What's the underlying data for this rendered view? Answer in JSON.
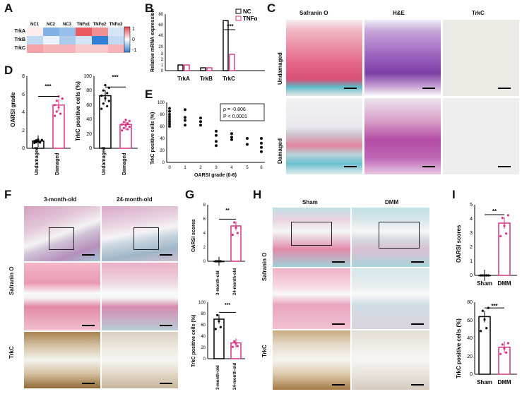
{
  "panels": {
    "A": "A",
    "B": "B",
    "C": "C",
    "D": "D",
    "E": "E",
    "F": "F",
    "G": "G",
    "H": "H",
    "I": "I"
  },
  "heatmap": {
    "cols": [
      "NC1",
      "NC2",
      "NC3",
      "TNFα1",
      "TNFα2",
      "TNFα3"
    ],
    "rows": [
      "TrkA",
      "TrkB",
      "TrkC"
    ],
    "values": [
      [
        0.1,
        -0.6,
        -0.5,
        0.9,
        0.6,
        -0.2
      ],
      [
        -0.3,
        -0.1,
        -0.4,
        -0.2,
        -1.0,
        -0.3
      ],
      [
        0.5,
        0.4,
        0.4,
        0.3,
        0.3,
        0.4
      ]
    ],
    "scale_ticks": [
      "1",
      "0",
      "-1"
    ],
    "colors": {
      "high": "#e7464e",
      "mid": "#ffffff",
      "low": "#2f7fd4"
    }
  },
  "chart_data": [
    {
      "id": "B",
      "type": "bar",
      "ylabel": "Relative mRNA expression",
      "categories": [
        "TrkA",
        "TrkB",
        "TrkC"
      ],
      "series": [
        {
          "name": "NC",
          "values": [
            1,
            0.5,
            72
          ]
        },
        {
          "name": "TNFα",
          "values": [
            1,
            0.5,
            19
          ]
        }
      ],
      "yticks": [
        "0",
        "1",
        "2",
        "3",
        "20",
        "40",
        "60",
        "80"
      ],
      "sig": "***"
    },
    {
      "id": "D1",
      "type": "bar",
      "ylabel": "OARSI grade",
      "categories": [
        "Undamaged",
        "Damaged"
      ],
      "values": [
        0.8,
        4.8
      ],
      "ylim": [
        0,
        8
      ],
      "yticks": [
        "0",
        "2",
        "4",
        "6",
        "8"
      ],
      "sig": "***"
    },
    {
      "id": "D2",
      "type": "bar",
      "ylabel": "TrkC positive cells (%)",
      "categories": [
        "Undamaged",
        "Damaged"
      ],
      "values": [
        73,
        33
      ],
      "ylim": [
        0,
        100
      ],
      "yticks": [
        "0",
        "20",
        "40",
        "60",
        "80",
        "100"
      ],
      "sig": "***"
    },
    {
      "id": "E",
      "type": "scatter",
      "xlabel": "OARSI grade (0-6)",
      "ylabel": "TrkC positive cells (%)",
      "xticks": [
        "0",
        "1",
        "2",
        "3",
        "4",
        "5",
        "6"
      ],
      "yticks": [
        "0",
        "20",
        "40",
        "60",
        "80",
        "100"
      ],
      "points": [
        [
          0,
          90
        ],
        [
          0,
          85
        ],
        [
          0,
          80
        ],
        [
          0,
          76
        ],
        [
          0,
          72
        ],
        [
          0,
          68
        ],
        [
          0,
          64
        ],
        [
          0,
          60
        ],
        [
          1,
          88
        ],
        [
          1,
          75
        ],
        [
          1,
          70
        ],
        [
          1,
          62
        ],
        [
          2,
          74
        ],
        [
          2,
          68
        ],
        [
          2,
          62
        ],
        [
          3,
          52
        ],
        [
          3,
          45
        ],
        [
          3,
          35
        ],
        [
          3,
          28
        ],
        [
          4,
          48
        ],
        [
          4,
          42
        ],
        [
          4,
          38
        ],
        [
          5,
          40
        ],
        [
          5,
          30
        ],
        [
          6,
          40
        ],
        [
          6,
          32
        ],
        [
          6,
          25
        ],
        [
          6,
          18
        ]
      ],
      "annotation": [
        "ρ = -0.806",
        "P < 0.0001"
      ]
    },
    {
      "id": "G1",
      "type": "bar",
      "ylabel": "OARSI scores",
      "categories": [
        "3-month-old",
        "24-month-old"
      ],
      "values": [
        0,
        5
      ],
      "ylim": [
        0,
        8
      ],
      "yticks": [
        "0",
        "2",
        "4",
        "6",
        "8"
      ],
      "sig": "**"
    },
    {
      "id": "G2",
      "type": "bar",
      "ylabel": "TrkC positive cells (%)",
      "categories": [
        "3-month-old",
        "24-month-old"
      ],
      "values": [
        70,
        28
      ],
      "ylim": [
        0,
        100
      ],
      "yticks": [
        "0",
        "20",
        "40",
        "60",
        "80",
        "100"
      ],
      "sig": "***"
    },
    {
      "id": "I1",
      "type": "bar",
      "ylabel": "OARSI scores",
      "categories": [
        "Sham",
        "DMM"
      ],
      "values": [
        0,
        3.7
      ],
      "ylim": [
        0,
        5
      ],
      "yticks": [
        "0",
        "1",
        "2",
        "3",
        "4",
        "5"
      ],
      "sig": "**"
    },
    {
      "id": "I2",
      "type": "bar",
      "ylabel": "TrkC positive cells (%)",
      "categories": [
        "Sham",
        "DMM"
      ],
      "values": [
        64,
        30
      ],
      "ylim": [
        0,
        80
      ],
      "yticks": [
        "0",
        "20",
        "40",
        "60",
        "80"
      ],
      "sig": "***"
    }
  ],
  "C": {
    "cols": [
      "Safranin O",
      "H&E",
      "TrkC"
    ],
    "rows": [
      "Undamaged",
      "Damaged"
    ]
  },
  "F": {
    "cols": [
      "3-month-old",
      "24-month-old"
    ],
    "rows": [
      "Safranin O",
      "TrkC"
    ]
  },
  "H": {
    "cols": [
      "Sham",
      "DMM"
    ],
    "rows": [
      "Safranin O",
      "TrkC"
    ]
  }
}
